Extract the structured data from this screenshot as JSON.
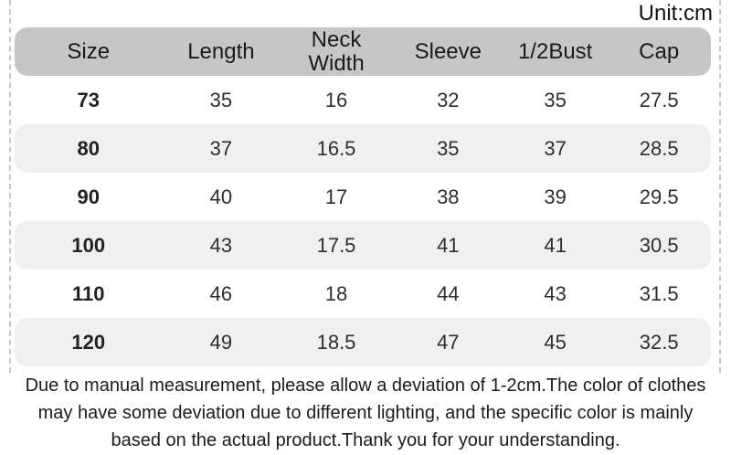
{
  "unit_label": "Unit:cm",
  "table": {
    "columns": [
      "Size",
      "Length",
      "Neck\nWidth",
      "Sleeve",
      "1/2Bust",
      "Cap"
    ],
    "rows": [
      [
        "73",
        "35",
        "16",
        "32",
        "35",
        "27.5"
      ],
      [
        "80",
        "37",
        "16.5",
        "35",
        "37",
        "28.5"
      ],
      [
        "90",
        "40",
        "17",
        "38",
        "39",
        "29.5"
      ],
      [
        "100",
        "43",
        "17.5",
        "41",
        "41",
        "30.5"
      ],
      [
        "110",
        "46",
        "18",
        "44",
        "43",
        "31.5"
      ],
      [
        "120",
        "49",
        "18.5",
        "47",
        "45",
        "32.5"
      ]
    ]
  },
  "note": {
    "lines": [
      "Due to manual measurement, please allow a deviation of 1-2cm.The color of clothes",
      "may have some deviation due to different lighting, and the specific color is mainly",
      "based on the actual product.Thank you for your understanding."
    ]
  },
  "colors": {
    "header_bg": "#c6c6c6",
    "alt_row_bg": "#f0f0f0",
    "text": "#212121",
    "dashed_line": "#c7c7c7"
  },
  "chart_data": {
    "type": "table",
    "title": "Size chart (Unit:cm)",
    "unit": "cm",
    "columns": [
      "Size",
      "Length",
      "Neck Width",
      "Sleeve",
      "1/2Bust",
      "Cap"
    ],
    "rows": [
      [
        73,
        35,
        16,
        32,
        35,
        27.5
      ],
      [
        80,
        37,
        16.5,
        35,
        37,
        28.5
      ],
      [
        90,
        40,
        17,
        38,
        39,
        29.5
      ],
      [
        100,
        43,
        17.5,
        41,
        41,
        30.5
      ],
      [
        110,
        46,
        18,
        44,
        43,
        31.5
      ],
      [
        120,
        49,
        18.5,
        47,
        45,
        32.5
      ]
    ],
    "annotations": [
      "Due to manual measurement, please allow a deviation of 1-2cm.The color of clothes may have some deviation due to different lighting, and the specific color is mainly based on the actual product.Thank you for your understanding."
    ]
  }
}
